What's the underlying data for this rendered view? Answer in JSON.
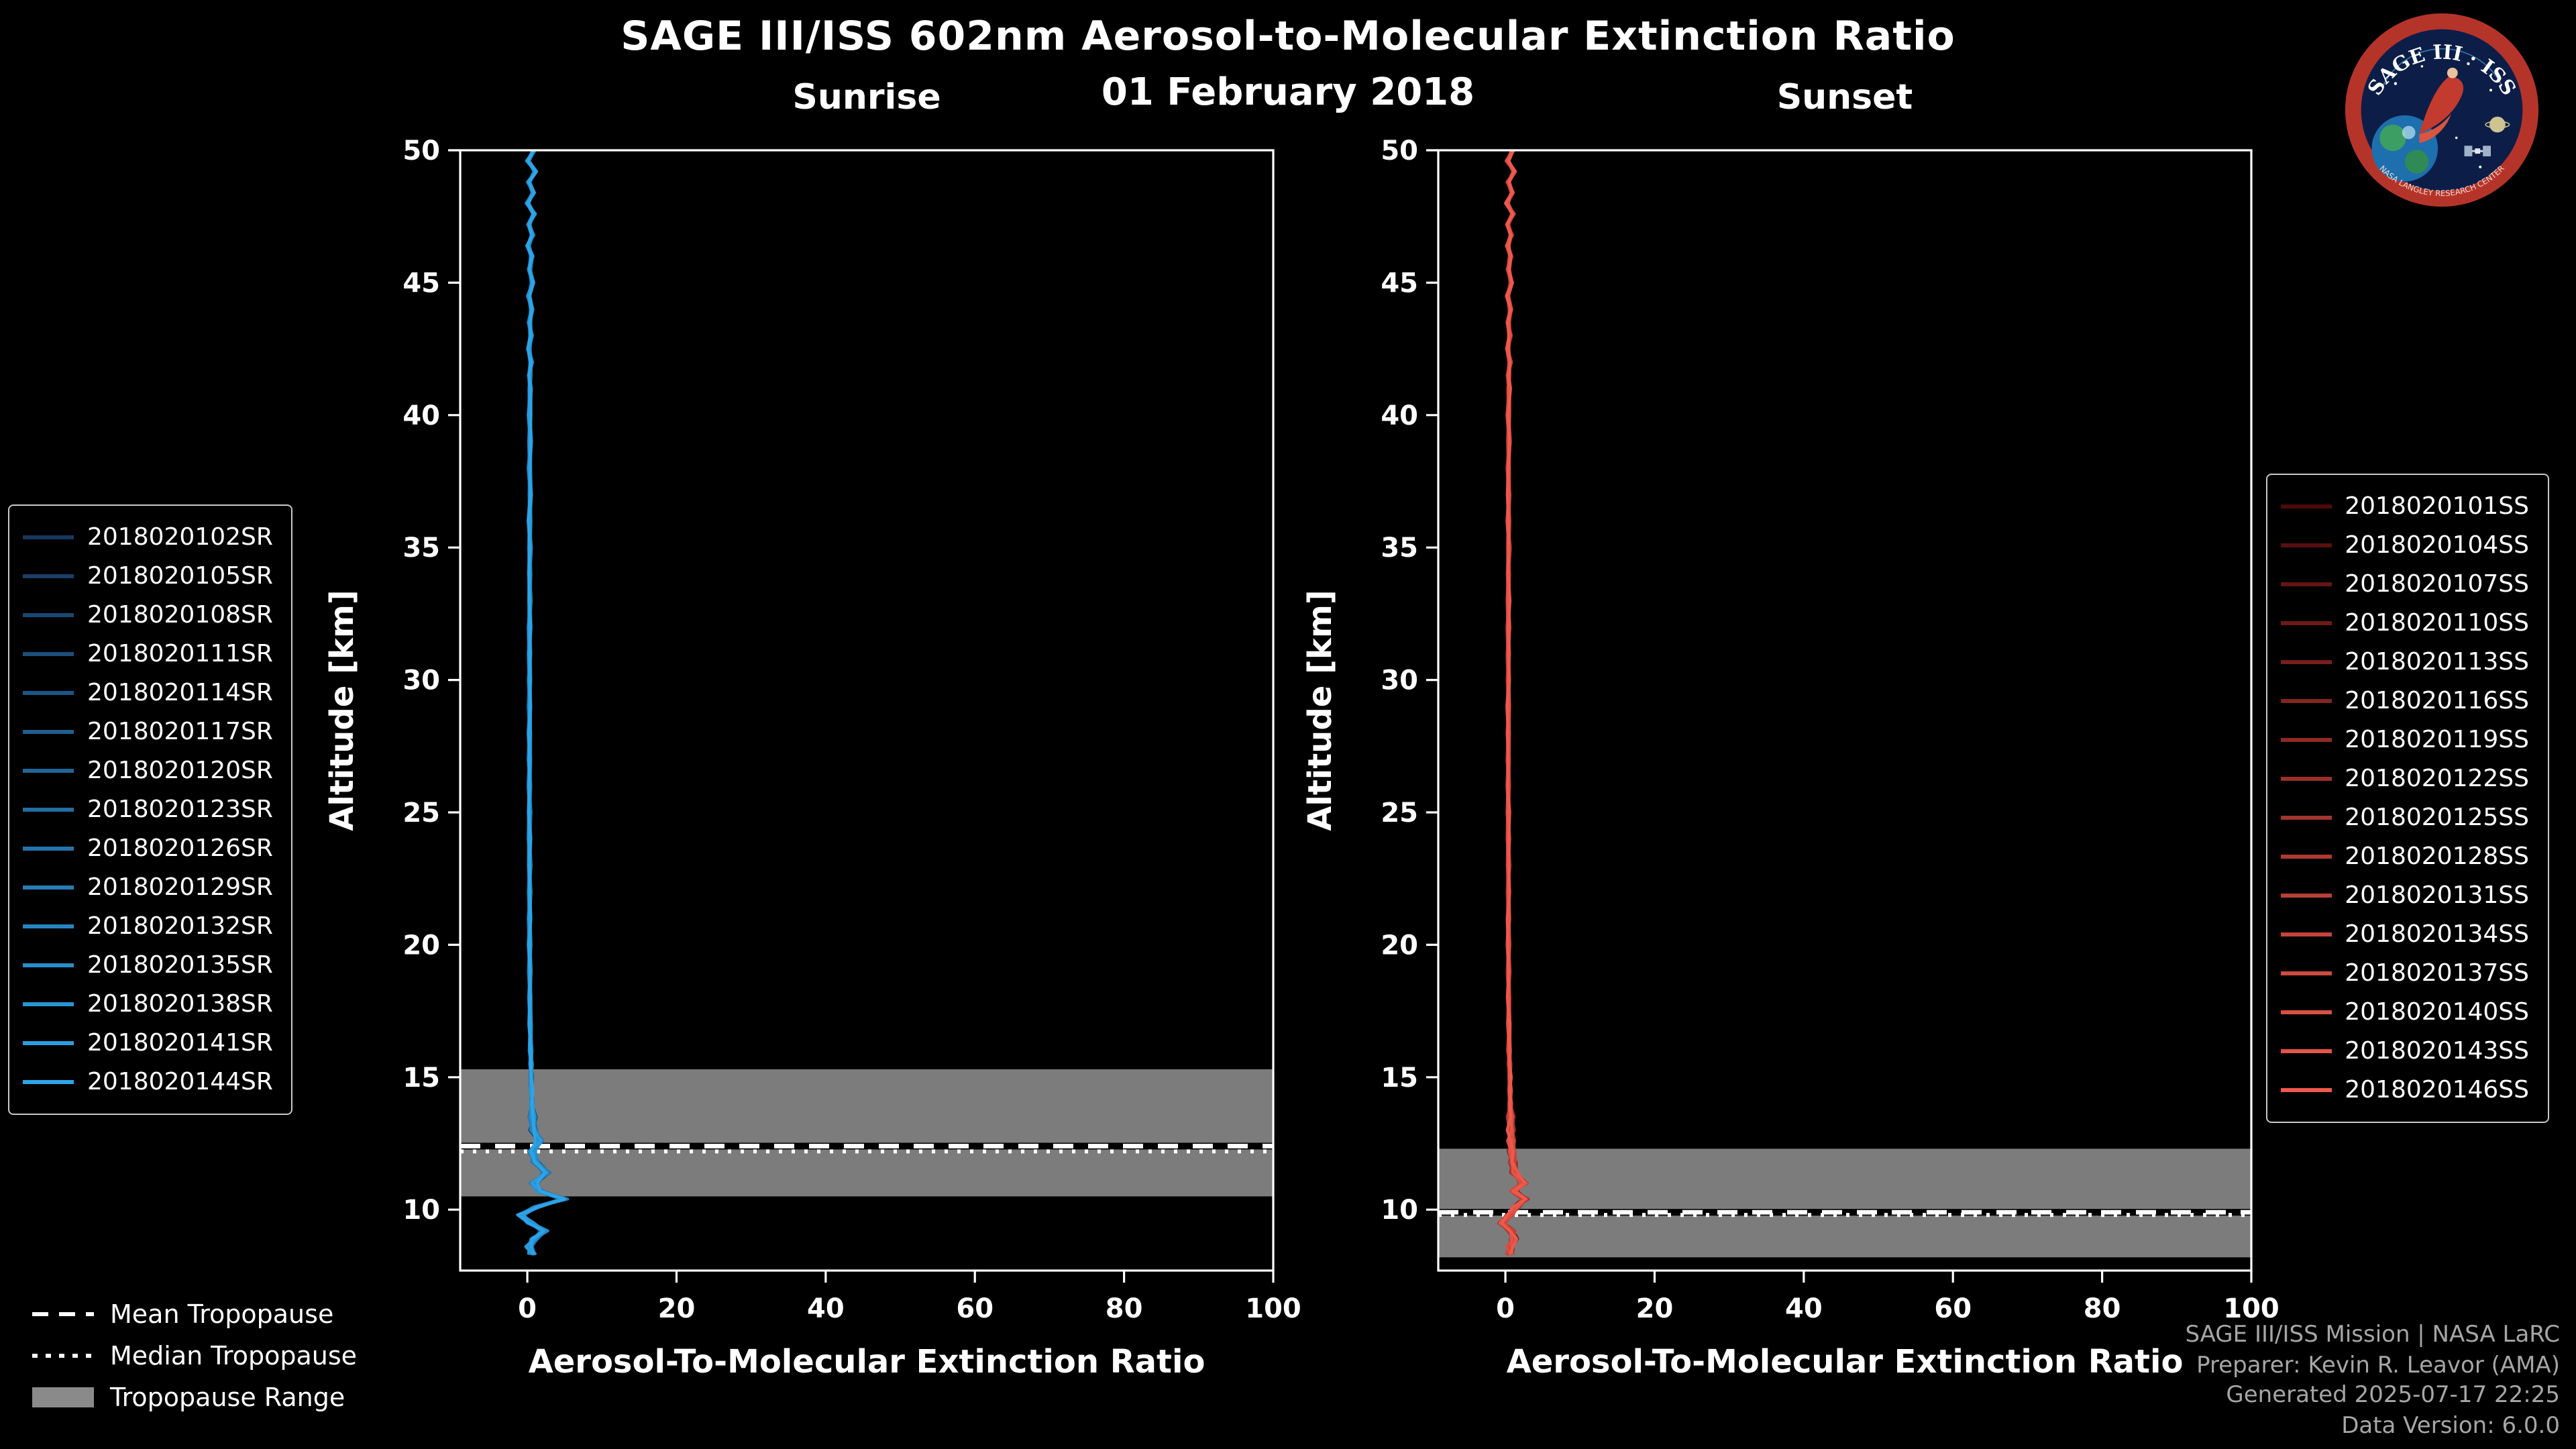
{
  "title": "SAGE III/ISS 602nm Aerosol-to-Molecular Extinction Ratio",
  "subtitle": "01 February 2018",
  "logo": {
    "arc_text": "SAGE III · ISS",
    "ring_text": "NASA LANGLEY RESEARCH CENTER"
  },
  "tropopause_legend": {
    "mean_label": "Mean Tropopause",
    "median_label": "Median Tropopause",
    "range_label": "Tropopause Range"
  },
  "credits": {
    "line1": "SAGE III/ISS Mission | NASA LaRC",
    "line2": "Preparer: Kevin R. Leavor (AMA)",
    "line3": "Generated 2025-07-17 22:25",
    "line4": "Data Version: 6.0.0"
  },
  "colors": {
    "background": "#000000",
    "foreground": "#ffffff",
    "tropopause_band": "#8a8a8a",
    "sunrise_dark": "#17375e",
    "sunrise_bright": "#2ca5e8",
    "sunset_dark": "#4d0a0a",
    "sunset_bright": "#ef5a4c"
  },
  "chart_data": [
    {
      "type": "line",
      "id": "sunrise",
      "title": "Sunrise",
      "xlabel": "Aerosol-To-Molecular Extinction Ratio",
      "ylabel": "Altitude [km]",
      "xlim": [
        -9,
        100
      ],
      "ylim": [
        7.7,
        50
      ],
      "xticks": [
        0,
        20,
        40,
        60,
        80,
        100
      ],
      "yticks": [
        10,
        15,
        20,
        25,
        30,
        35,
        40,
        45,
        50
      ],
      "grid": false,
      "legend_position": "left",
      "color_range": [
        "#17375e",
        "#2ca5e8"
      ],
      "series": [
        "2018020102SR",
        "2018020105SR",
        "2018020108SR",
        "2018020111SR",
        "2018020114SR",
        "2018020117SR",
        "2018020120SR",
        "2018020123SR",
        "2018020126SR",
        "2018020129SR",
        "2018020132SR",
        "2018020135SR",
        "2018020138SR",
        "2018020141SR",
        "2018020144SR"
      ],
      "profile_altitude_km": [
        50,
        49.6,
        49.2,
        48.8,
        48.4,
        48,
        47.6,
        47.2,
        46.8,
        46.4,
        46,
        45.5,
        45,
        44.5,
        44,
        43.5,
        43,
        42.5,
        42,
        41.5,
        41,
        40,
        39,
        38,
        37,
        36,
        35,
        34,
        33,
        32,
        31,
        30,
        29,
        28,
        27,
        26,
        25,
        24,
        23,
        22,
        21,
        20,
        19,
        18,
        17,
        16,
        15.5,
        15,
        14.5,
        14,
        13.5,
        13,
        12.6,
        12.2,
        11.8,
        11.4,
        11,
        10.7,
        10.4,
        10.1,
        9.8,
        9.5,
        9.2,
        8.9,
        8.6,
        8.3
      ],
      "profile_ratio": [
        0.9,
        0.1,
        1.1,
        0.2,
        0.8,
        0.0,
        0.9,
        0.2,
        0.7,
        0.1,
        0.6,
        0.3,
        0.7,
        0.2,
        0.6,
        0.3,
        0.5,
        0.2,
        0.5,
        0.3,
        0.4,
        0.3,
        0.4,
        0.3,
        0.4,
        0.3,
        0.35,
        0.3,
        0.35,
        0.3,
        0.3,
        0.3,
        0.3,
        0.3,
        0.3,
        0.3,
        0.3,
        0.3,
        0.3,
        0.3,
        0.3,
        0.3,
        0.35,
        0.35,
        0.4,
        0.45,
        0.5,
        0.5,
        0.55,
        0.6,
        0.7,
        0.8,
        1.6,
        0.7,
        1.1,
        2.6,
        0.9,
        1.6,
        4.9,
        1.2,
        -0.9,
        0.4,
        2.3,
        1.0,
        0.3,
        0.7
      ],
      "tropopause": {
        "mean_km": 12.4,
        "median_km": 12.2,
        "range_km": [
          10.5,
          15.3
        ]
      }
    },
    {
      "type": "line",
      "id": "sunset",
      "title": "Sunset",
      "xlabel": "Aerosol-To-Molecular Extinction Ratio",
      "ylabel": "Altitude [km]",
      "xlim": [
        -9,
        100
      ],
      "ylim": [
        7.7,
        50
      ],
      "xticks": [
        0,
        20,
        40,
        60,
        80,
        100
      ],
      "yticks": [
        10,
        15,
        20,
        25,
        30,
        35,
        40,
        45,
        50
      ],
      "grid": false,
      "legend_position": "right",
      "color_range": [
        "#4d0a0a",
        "#ef5a4c"
      ],
      "series": [
        "2018020101SS",
        "2018020104SS",
        "2018020107SS",
        "2018020110SS",
        "2018020113SS",
        "2018020116SS",
        "2018020119SS",
        "2018020122SS",
        "2018020125SS",
        "2018020128SS",
        "2018020131SS",
        "2018020134SS",
        "2018020137SS",
        "2018020140SS",
        "2018020143SS",
        "2018020146SS"
      ],
      "profile_altitude_km": [
        50,
        49.6,
        49.2,
        48.8,
        48.4,
        48,
        47.6,
        47.2,
        46.8,
        46.4,
        46,
        45.5,
        45,
        44.5,
        44,
        43.5,
        43,
        42.5,
        42,
        41.5,
        41,
        40,
        39,
        38,
        37,
        36,
        35,
        34,
        33,
        32,
        31,
        30,
        29,
        28,
        27,
        26,
        25,
        24,
        23,
        22,
        21,
        20,
        19,
        18,
        17,
        16,
        15.5,
        15,
        14.5,
        14,
        13.5,
        13,
        12.6,
        12.2,
        11.8,
        11.4,
        11,
        10.7,
        10.4,
        10.1,
        9.8,
        9.5,
        9.2,
        8.9,
        8.6,
        8.3
      ],
      "profile_ratio": [
        1.0,
        0.3,
        1.2,
        0.4,
        0.9,
        0.2,
        1.0,
        0.3,
        0.8,
        0.3,
        0.7,
        0.4,
        0.8,
        0.3,
        0.7,
        0.4,
        0.6,
        0.3,
        0.6,
        0.4,
        0.5,
        0.4,
        0.5,
        0.4,
        0.45,
        0.4,
        0.45,
        0.4,
        0.4,
        0.4,
        0.4,
        0.4,
        0.4,
        0.4,
        0.4,
        0.4,
        0.4,
        0.4,
        0.4,
        0.4,
        0.4,
        0.4,
        0.45,
        0.45,
        0.5,
        0.5,
        0.55,
        0.6,
        0.6,
        0.65,
        0.7,
        0.75,
        0.8,
        0.9,
        1.0,
        1.2,
        2.4,
        1.1,
        2.6,
        1.4,
        0.6,
        -0.5,
        0.8,
        1.2,
        0.7,
        0.6
      ],
      "tropopause": {
        "mean_km": 9.9,
        "median_km": 9.8,
        "range_km": [
          8.2,
          12.3
        ]
      }
    }
  ]
}
